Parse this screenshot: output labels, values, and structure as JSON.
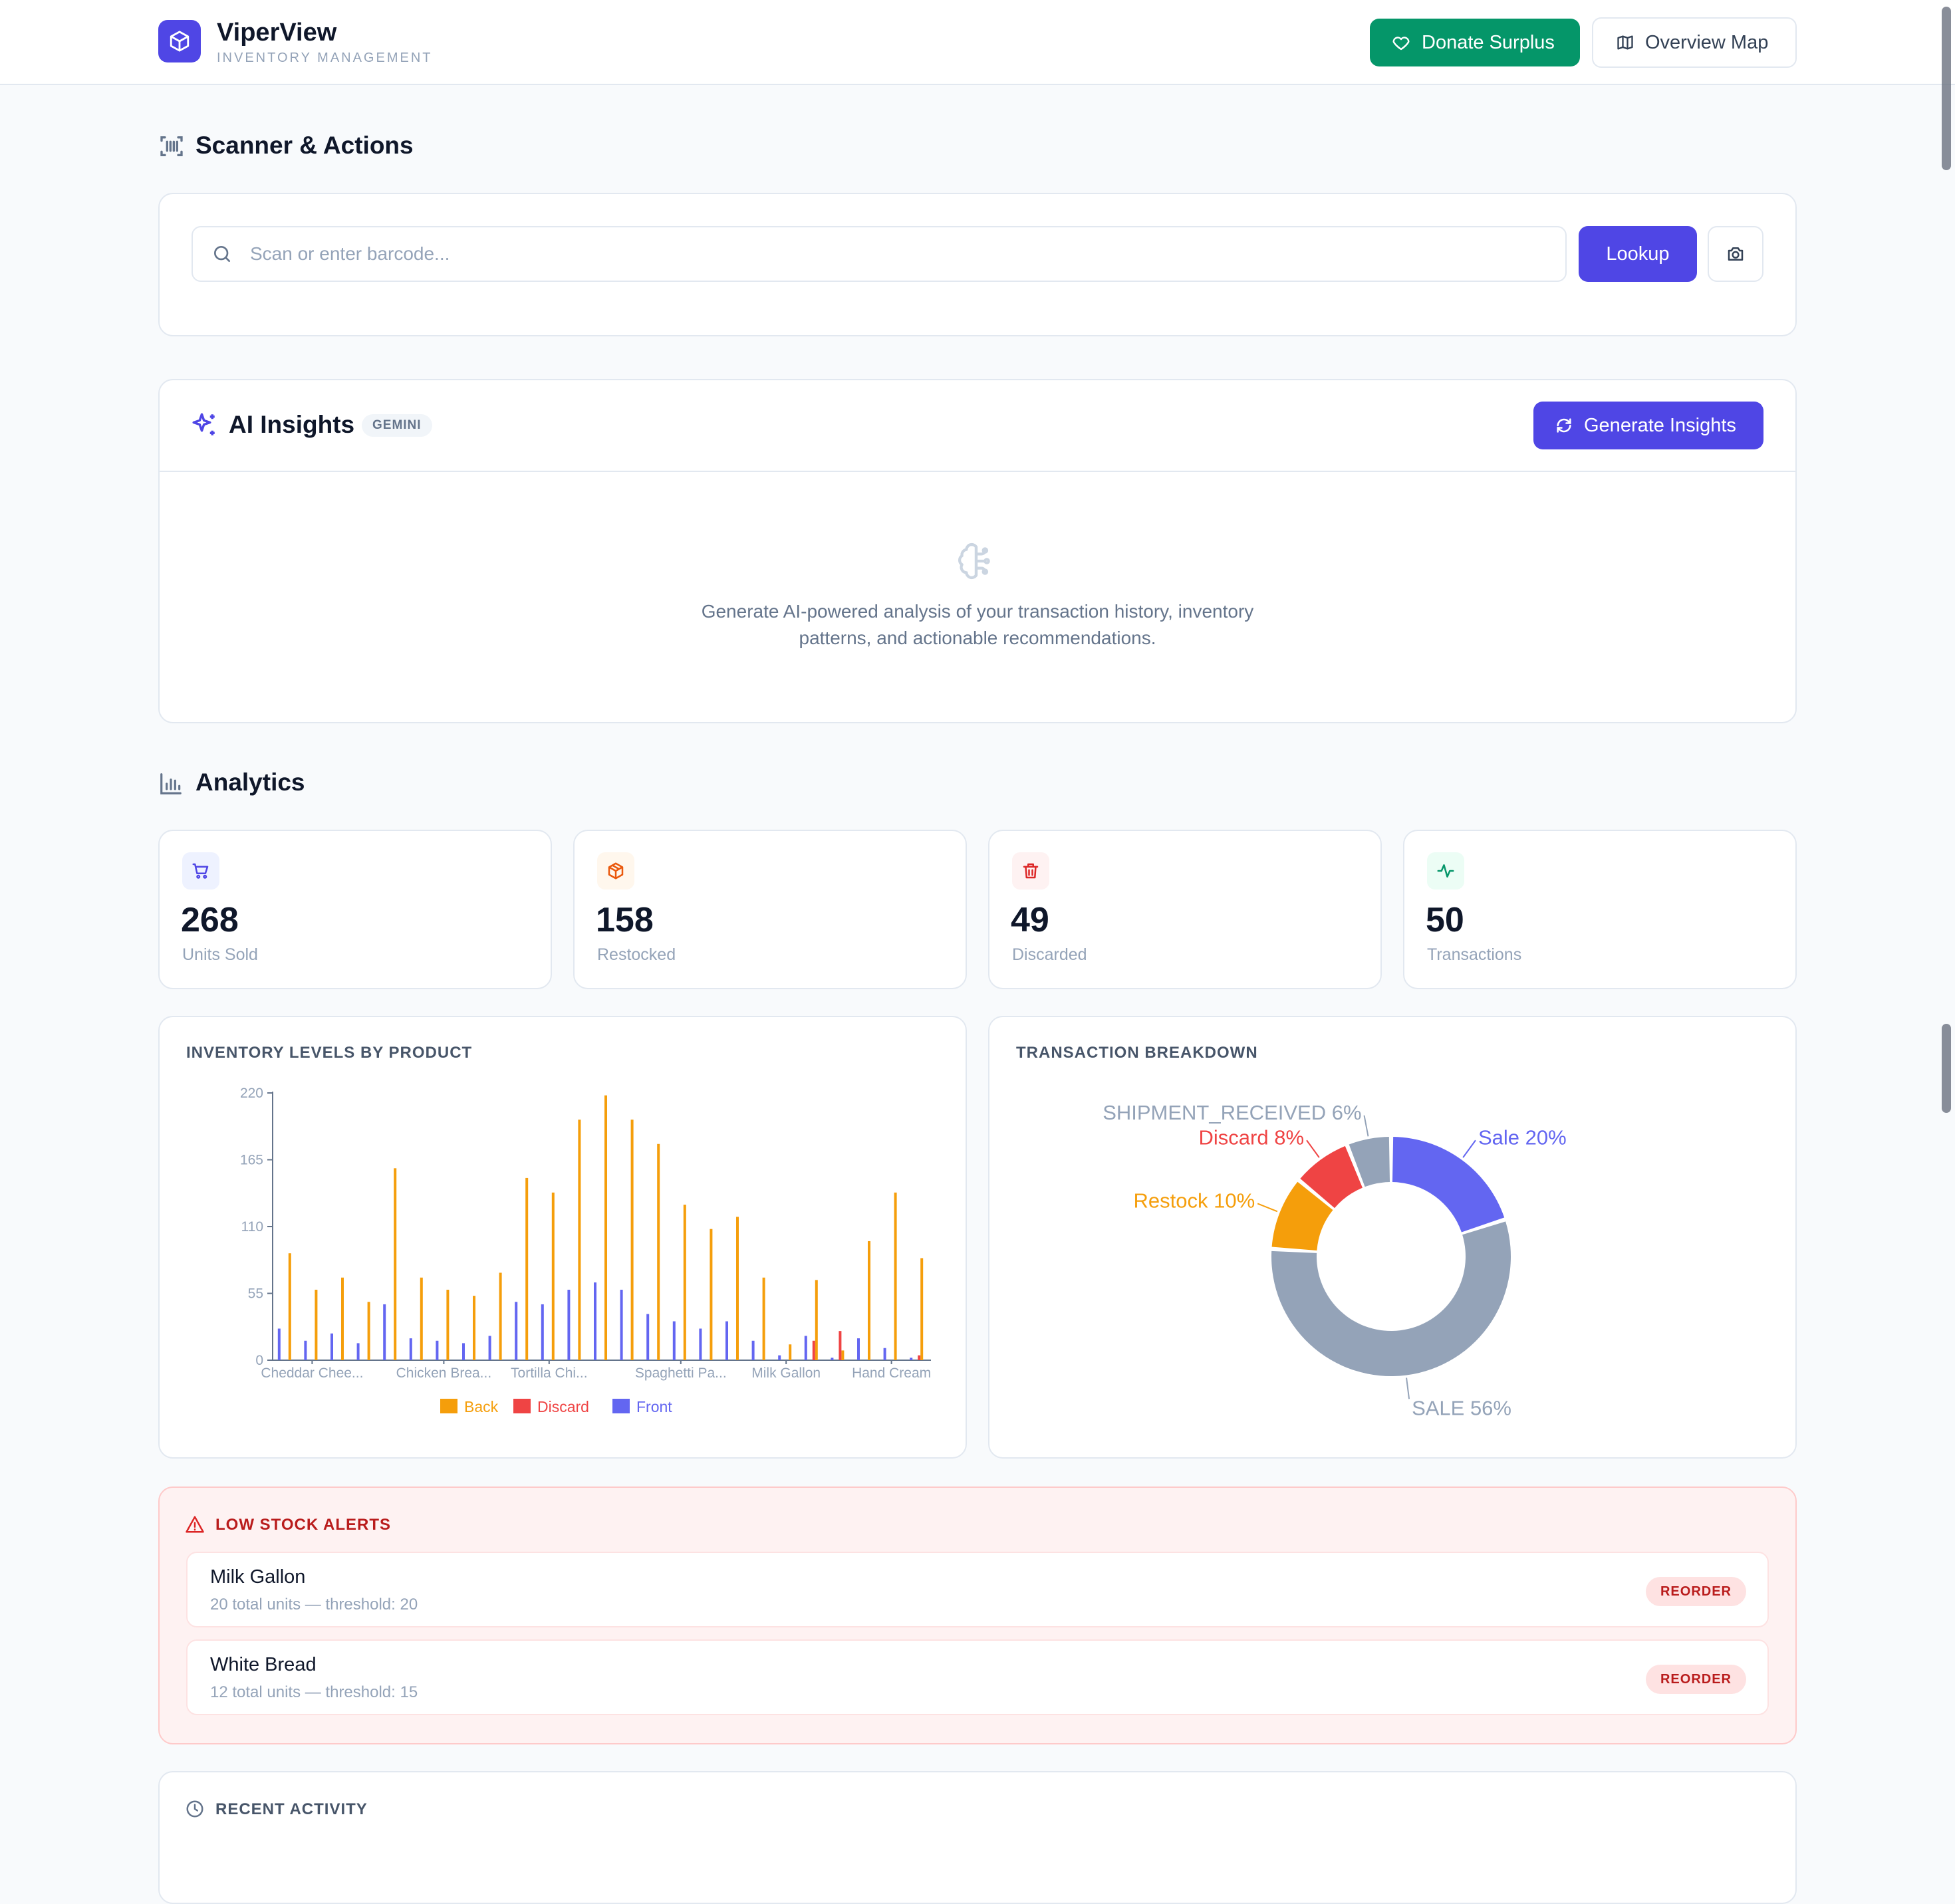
{
  "header": {
    "app_name": "ViperView",
    "app_subtitle": "INVENTORY MANAGEMENT",
    "logo_icon": "cube-icon",
    "donate_label": "Donate Surplus",
    "map_label": "Overview Map"
  },
  "scanner": {
    "title": "Scanner & Actions",
    "placeholder": "Scan or enter barcode...",
    "value": "",
    "lookup_label": "Lookup"
  },
  "ai": {
    "title": "AI Insights",
    "badge": "GEMINI",
    "generate_label": "Generate Insights",
    "empty_line1": "Generate AI-powered analysis of your transaction history, inventory",
    "empty_line2": "patterns, and actionable recommendations."
  },
  "analytics": {
    "title": "Analytics",
    "stats": [
      {
        "value": "268",
        "label": "Units Sold",
        "icon": "cart-icon",
        "color": "#4f46e5",
        "bg": "#eef2ff"
      },
      {
        "value": "158",
        "label": "Restocked",
        "icon": "package-icon",
        "color": "#ea580c",
        "bg": "#fff7ed"
      },
      {
        "value": "49",
        "label": "Discarded",
        "icon": "trash-icon",
        "color": "#dc2626",
        "bg": "#fef2f2"
      },
      {
        "value": "50",
        "label": "Transactions",
        "icon": "activity-icon",
        "color": "#059669",
        "bg": "#ecfdf5"
      }
    ]
  },
  "charts": {
    "bar_title": "INVENTORY LEVELS BY PRODUCT",
    "pie_title": "TRANSACTION BREAKDOWN"
  },
  "chart_data": [
    {
      "type": "bar",
      "title": "INVENTORY LEVELS BY PRODUCT",
      "ylim": [
        0,
        220
      ],
      "yticks": [
        0,
        55,
        110,
        165,
        220
      ],
      "categories_count": 25,
      "visible_category_labels": [
        "Cheddar Chee...",
        "Chicken Brea...",
        "Tortilla Chi...",
        "Spaghetti Pa...",
        "Milk Gallon",
        "Hand Cream"
      ],
      "visible_category_label_indices": [
        1,
        6,
        10,
        15,
        19,
        23
      ],
      "legend_position": "bottom",
      "series": [
        {
          "name": "Back",
          "color": "#f59e0b",
          "values": [
            88,
            58,
            68,
            48,
            158,
            68,
            58,
            53,
            72,
            150,
            138,
            198,
            218,
            198,
            178,
            128,
            108,
            118,
            68,
            13,
            66,
            8,
            98,
            138,
            84
          ]
        },
        {
          "name": "Discard",
          "color": "#ef4444",
          "values": [
            0,
            0,
            0,
            0,
            0,
            0,
            0,
            0,
            0,
            0,
            0,
            0,
            0,
            0,
            0,
            0,
            0,
            0,
            0,
            0,
            16,
            24,
            0,
            0,
            4
          ]
        },
        {
          "name": "Front",
          "color": "#6366f1",
          "values": [
            26,
            16,
            22,
            14,
            46,
            18,
            16,
            14,
            20,
            48,
            46,
            58,
            64,
            58,
            38,
            32,
            26,
            32,
            16,
            4,
            20,
            2,
            18,
            10,
            2
          ]
        }
      ]
    },
    {
      "type": "pie",
      "title": "TRANSACTION BREAKDOWN",
      "slices": [
        {
          "label": "Sale 20%",
          "value": 20,
          "color": "#6366f1"
        },
        {
          "label": "SALE 56%",
          "value": 56,
          "color": "#94a3b8"
        },
        {
          "label": "Restock 10%",
          "value": 10,
          "color": "#f59e0b"
        },
        {
          "label": "Discard 8%",
          "value": 8,
          "color": "#ef4444"
        },
        {
          "label": "SHIPMENT_RECEIVED 6%",
          "value": 6,
          "color": "#94a3b8"
        }
      ]
    }
  ],
  "alerts": {
    "title": "LOW STOCK ALERTS",
    "items": [
      {
        "name": "Milk Gallon",
        "detail": "20 total units — threshold: 20",
        "action": "REORDER"
      },
      {
        "name": "White Bread",
        "detail": "12 total units — threshold: 15",
        "action": "REORDER"
      }
    ]
  },
  "activity": {
    "title": "RECENT ACTIVITY"
  }
}
